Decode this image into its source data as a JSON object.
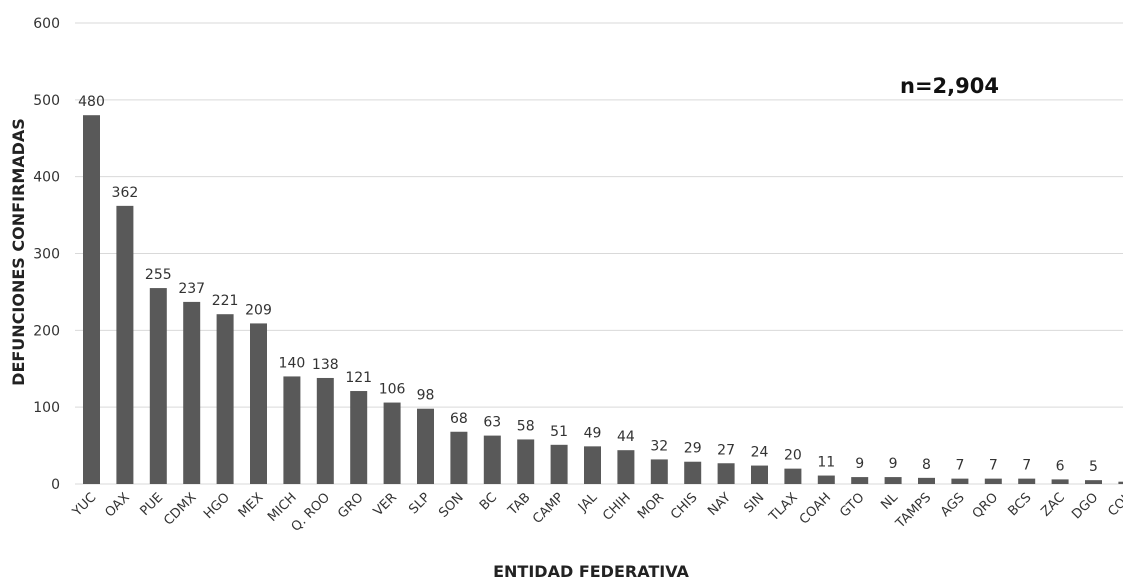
{
  "chart_data": {
    "type": "bar",
    "title": "",
    "xlabel": "ENTIDAD FEDERATIVA",
    "ylabel": "DEFUNCIONES CONFIRMADAS",
    "annotation": "n=2,904",
    "ylim": [
      0,
      600
    ],
    "yticks": [
      0,
      100,
      200,
      300,
      400,
      500,
      600
    ],
    "grid": true,
    "bar_color": "#595959",
    "categories": [
      "YUC",
      "OAX",
      "PUE",
      "CDMX",
      "HGO",
      "MEX",
      "MICH",
      "Q. ROO",
      "GRO",
      "VER",
      "SLP",
      "SON",
      "BC",
      "TAB",
      "CAMP",
      "JAL",
      "CHIH",
      "MOR",
      "CHIS",
      "NAY",
      "SIN",
      "TLAX",
      "COAH",
      "GTO",
      "NL",
      "TAMPS",
      "AGS",
      "QRO",
      "BCS",
      "ZAC",
      "DGO",
      "COL"
    ],
    "values": [
      480,
      362,
      255,
      237,
      221,
      209,
      140,
      138,
      121,
      106,
      98,
      68,
      63,
      58,
      51,
      49,
      44,
      32,
      29,
      27,
      24,
      20,
      11,
      9,
      9,
      8,
      7,
      7,
      7,
      6,
      5,
      3
    ]
  }
}
